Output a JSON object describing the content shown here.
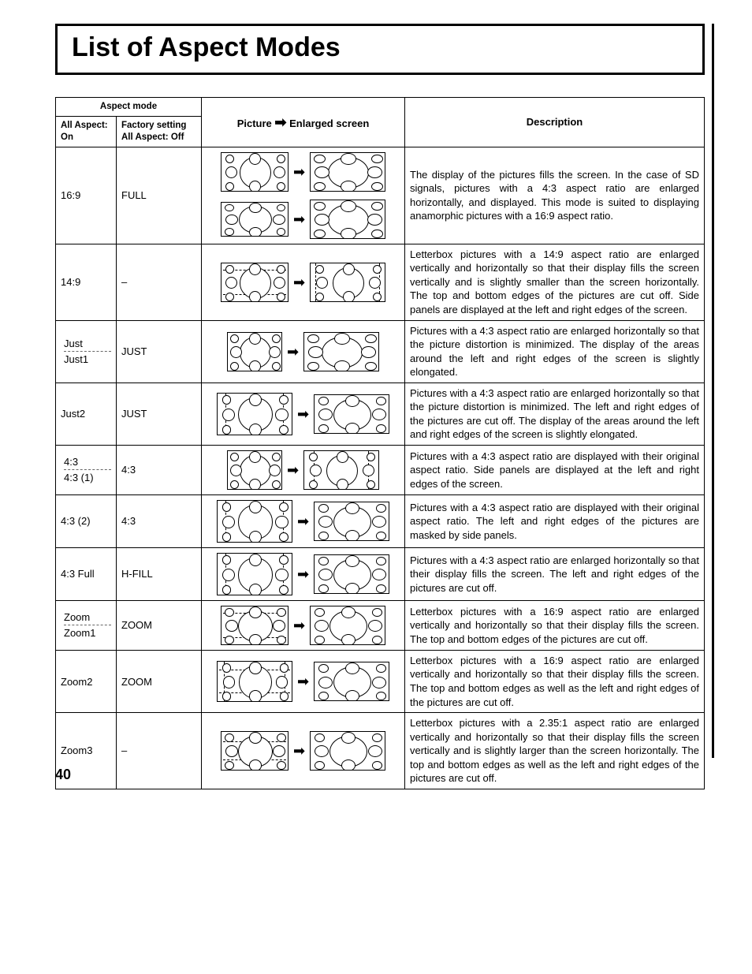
{
  "title": "List of Aspect Modes",
  "page_number": "40",
  "headers": {
    "aspect_mode": "Aspect mode",
    "col1_line1": "All Aspect:",
    "col1_line2": "On",
    "col2_line1": "Factory setting",
    "col2_line2": "All Aspect: Off",
    "picture": "Picture",
    "enlarged": "Enlarged screen",
    "description": "Description"
  },
  "rows": [
    {
      "mode_a": "16:9",
      "factory": "FULL",
      "desc": "The display of the pictures fills the screen.\nIn the case of SD signals, pictures with a 4:3 aspect ratio are enlarged horizontally, and displayed. This mode is suited to displaying anamorphic pictures with a 16:9 aspect ratio.",
      "diagram": "sixteen_nine"
    },
    {
      "mode_a": "14:9",
      "factory": "–",
      "desc": "Letterbox pictures with a 14:9 aspect ratio are enlarged vertically and horizontally so that their display fills the screen vertically and is slightly smaller than the screen horizontally. The top and bottom edges of the pictures are cut off. Side panels are displayed at the left and right edges of the screen.",
      "diagram": "fourteen_nine"
    },
    {
      "mode_a": "Just",
      "mode_b": "Just1",
      "factory": "JUST",
      "desc": "Pictures with a 4:3 aspect ratio are enlarged horizontally so that the picture distortion is minimized. The display of the areas around the left and right edges of the screen is slightly elongated.",
      "diagram": "just1"
    },
    {
      "mode_a": "Just2",
      "factory": "JUST",
      "desc": "Pictures with a 4:3 aspect ratio are enlarged horizontally so that the picture distortion is minimized. The left and right edges of the pictures are cut off. The display of the areas around the left and right edges of the screen is slightly elongated.",
      "diagram": "just2"
    },
    {
      "mode_a": "4:3",
      "mode_b": "4:3 (1)",
      "factory": "4:3",
      "desc": "Pictures with a 4:3 aspect ratio are displayed with their original aspect ratio. Side panels are displayed at the left and right edges of the screen.",
      "diagram": "four_three_1"
    },
    {
      "mode_a": "4:3 (2)",
      "factory": "4:3",
      "desc": "Pictures with a 4:3 aspect ratio are displayed with their original aspect ratio. The left and right edges of the pictures are masked by side panels.",
      "diagram": "four_three_2"
    },
    {
      "mode_a": "4:3 Full",
      "factory": "H-FILL",
      "desc": "Pictures with a 4:3 aspect ratio are enlarged horizontally so that their display fills the screen. The left and right edges of the pictures are cut off.",
      "diagram": "hfill"
    },
    {
      "mode_a": "Zoom",
      "mode_b": "Zoom1",
      "factory": "ZOOM",
      "desc": "Letterbox pictures with a 16:9 aspect ratio are enlarged vertically and horizontally so that their display fills the screen. The top and bottom edges of the pictures are cut off.",
      "diagram": "zoom1"
    },
    {
      "mode_a": "Zoom2",
      "factory": "ZOOM",
      "desc": "Letterbox pictures with a 16:9 aspect ratio are enlarged vertically and horizontally so that their display fills the screen. The top and bottom edges as well as the left and right edges of the pictures are cut off.",
      "diagram": "zoom2"
    },
    {
      "mode_a": "Zoom3",
      "factory": "–",
      "desc": "Letterbox pictures with a 2.35:1 aspect ratio are enlarged vertically and horizontally so that their display fills the screen vertically and is slightly larger than the screen horizontally. The top and bottom edges as well as the left and right edges of the pictures are cut off.",
      "diagram": "zoom3"
    }
  ]
}
